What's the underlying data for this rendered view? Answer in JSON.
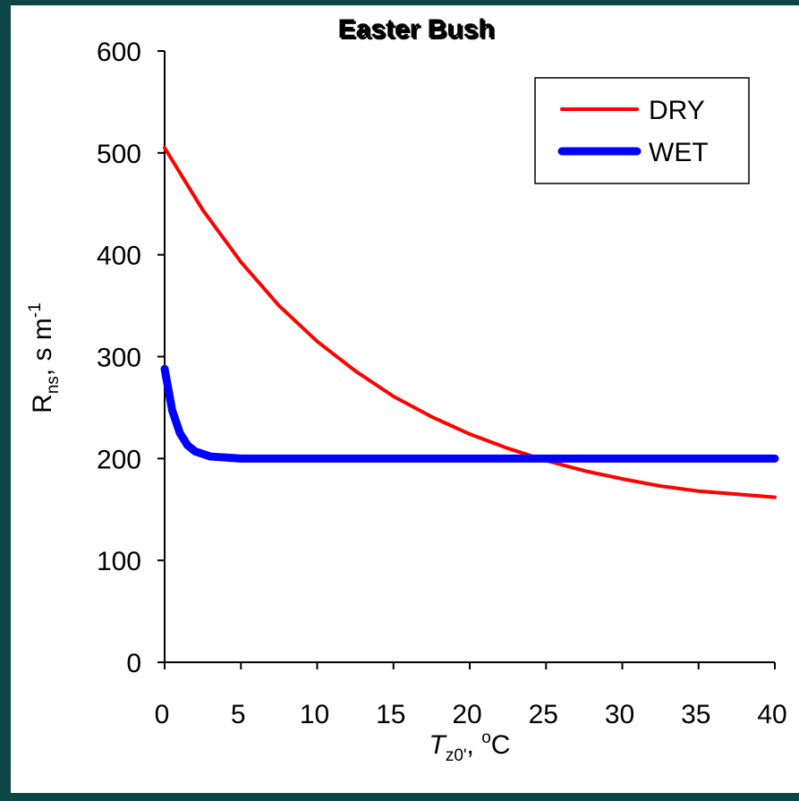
{
  "chart_data": {
    "type": "line",
    "title": "Easter Bush",
    "x_label": {
      "main": "T",
      "sub": "z0'",
      "rest": ", ",
      "sup": "o",
      "tail": "C"
    },
    "y_label": {
      "main": "R",
      "sub": "ns",
      "rest": ", s m",
      "sup": "-1"
    },
    "xlim": [
      0,
      40
    ],
    "xticks": [
      0,
      5,
      10,
      15,
      20,
      25,
      30,
      35,
      40
    ],
    "ylim": [
      0,
      600
    ],
    "yticks": [
      0,
      100,
      200,
      300,
      400,
      500,
      600
    ],
    "legend": "upper right",
    "series": [
      {
        "name": "DRY",
        "color": "#ff0000",
        "width": 4,
        "x": [
          0,
          2.5,
          5,
          7.5,
          10,
          12.5,
          15,
          17.5,
          20,
          22.5,
          25,
          27.5,
          30,
          32.5,
          35,
          37.5,
          40
        ],
        "values": [
          505,
          444,
          393,
          350,
          315,
          286,
          261,
          241,
          224,
          210,
          198,
          188,
          180,
          173,
          168,
          165,
          162
        ]
      },
      {
        "name": "WET",
        "color": "#0000ff",
        "width": 9,
        "x": [
          0,
          0.5,
          1,
          1.5,
          2,
          3,
          4,
          5,
          10,
          20,
          30,
          40
        ],
        "values": [
          288,
          247,
          225,
          213,
          207,
          202,
          201,
          200,
          200,
          200,
          200,
          200
        ]
      }
    ]
  }
}
